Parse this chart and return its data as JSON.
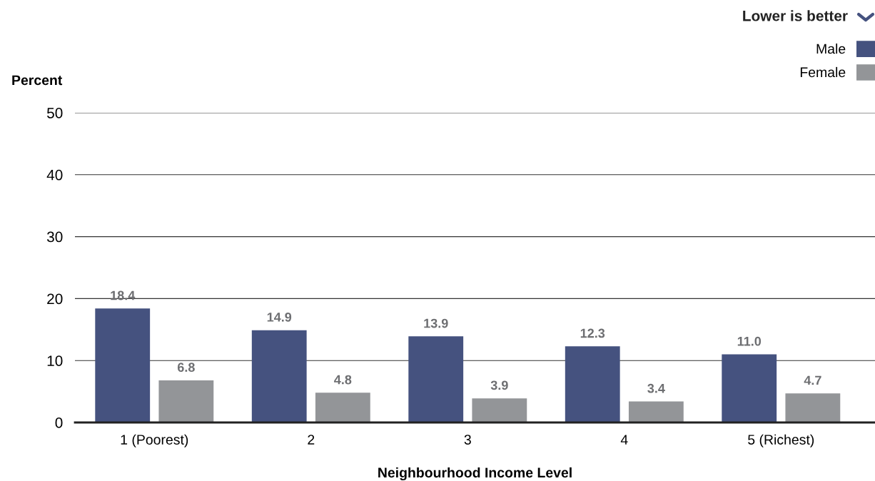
{
  "chart_data": {
    "type": "bar",
    "ylabel": "Percent",
    "xlabel": "Neighbourhood Income Level",
    "annotations": [
      "Lower is better"
    ],
    "categories": [
      "1 (Poorest)",
      "2",
      "3",
      "4",
      "5 (Richest)"
    ],
    "series": [
      {
        "name": "Male",
        "color": "#45527f",
        "values": [
          18.4,
          14.9,
          13.9,
          12.3,
          11.0
        ],
        "value_labels": [
          "18.4",
          "14.9",
          "13.9",
          "12.3",
          "11.0"
        ]
      },
      {
        "name": "Female",
        "color": "#939598",
        "values": [
          6.8,
          4.8,
          3.9,
          3.4,
          4.7
        ],
        "value_labels": [
          "6.8",
          "4.8",
          "3.9",
          "3.4",
          "4.7"
        ]
      }
    ],
    "ylim": [
      0,
      50
    ],
    "yticks": [
      0,
      10,
      20,
      30,
      40,
      50
    ],
    "grid": "y",
    "legend": "top right"
  }
}
